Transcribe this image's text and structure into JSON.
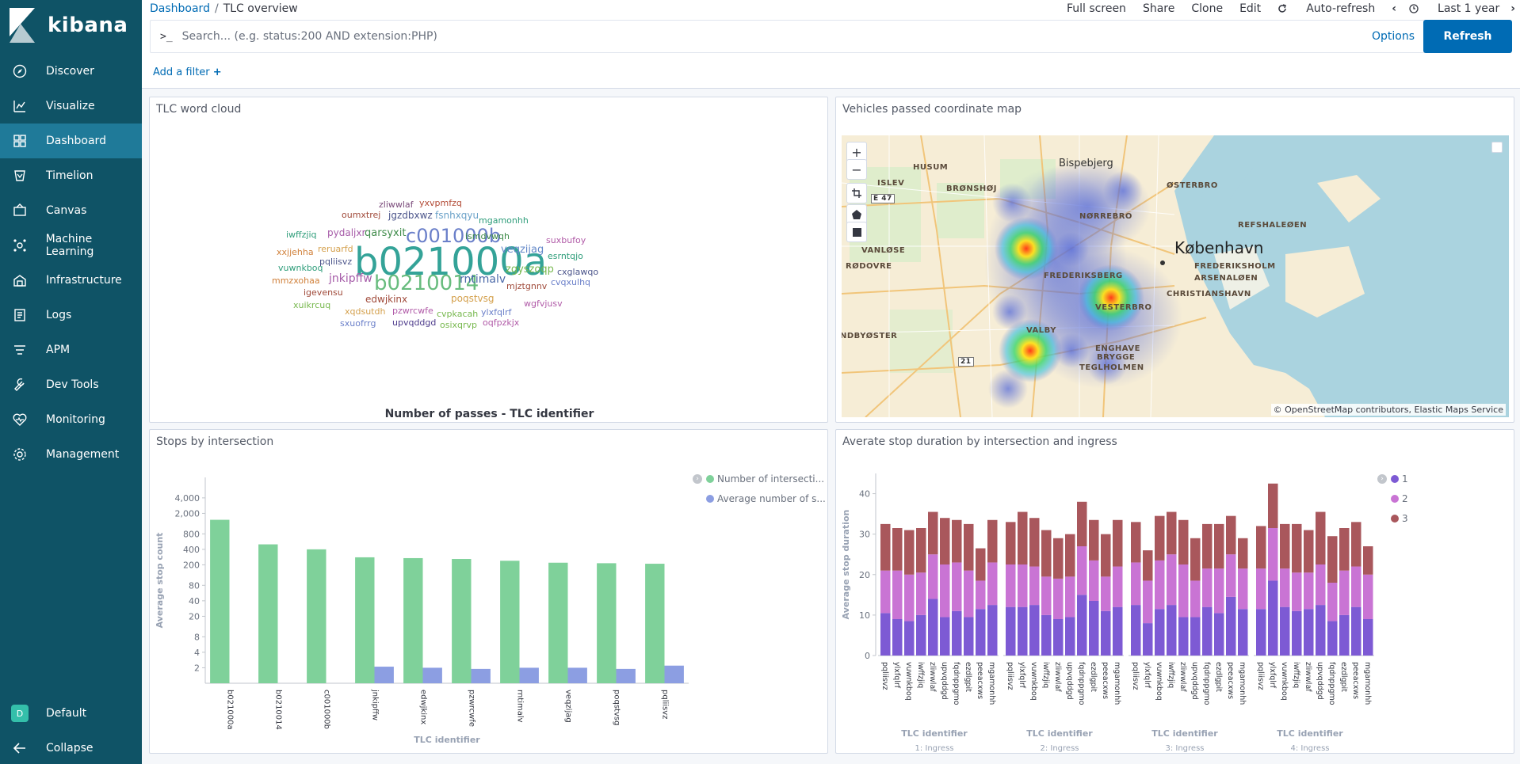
{
  "sidebar": {
    "brand": "kibana",
    "items": [
      {
        "label": "Discover",
        "icon": "compass-icon"
      },
      {
        "label": "Visualize",
        "icon": "visualize-icon"
      },
      {
        "label": "Dashboard",
        "icon": "dashboard-icon"
      },
      {
        "label": "Timelion",
        "icon": "timelion-icon"
      },
      {
        "label": "Canvas",
        "icon": "canvas-icon"
      },
      {
        "label": "Machine Learning",
        "icon": "ml-icon"
      },
      {
        "label": "Infrastructure",
        "icon": "infrastructure-icon"
      },
      {
        "label": "Logs",
        "icon": "logs-icon"
      },
      {
        "label": "APM",
        "icon": "apm-icon"
      },
      {
        "label": "Dev Tools",
        "icon": "wrench-icon"
      },
      {
        "label": "Monitoring",
        "icon": "heartbeat-icon"
      },
      {
        "label": "Management",
        "icon": "gear-icon"
      }
    ],
    "space_initial": "D",
    "space_label": "Default",
    "collapse_label": "Collapse"
  },
  "header": {
    "breadcrumb_root": "Dashboard",
    "breadcrumb_sep": "/",
    "breadcrumb_current": "TLC overview",
    "actions": [
      "Full screen",
      "Share",
      "Clone",
      "Edit"
    ],
    "auto_refresh": "Auto-refresh",
    "time_range": "Last 1 year",
    "search_prompt": ">_",
    "search_placeholder": "Search... (e.g. status:200 AND extension:PHP)",
    "options_label": "Options",
    "refresh_label": "Refresh",
    "add_filter_label": "Add a filter"
  },
  "panels": {
    "wordcloud": {
      "title": "TLC word cloud",
      "xlabel": "Number of passes - TLC identifier",
      "words": [
        {
          "text": "b021000a",
          "color": "#34a398"
        },
        {
          "text": "c001000b",
          "color": "#6a7fc9"
        },
        {
          "text": "b0210014",
          "color": "#68bc7e"
        },
        {
          "text": "rntimalv",
          "color": "#4c6aa9"
        },
        {
          "text": "jnkipffw",
          "color": "#a55ba8"
        },
        {
          "text": "qarsyxit",
          "color": "#3e8b49"
        },
        {
          "text": "veqzijag",
          "color": "#6388c8"
        },
        {
          "text": "zgyszoqp",
          "color": "#77b84e"
        },
        {
          "text": "pydaljxr",
          "color": "#a65ba8"
        },
        {
          "text": "jgzdbxwz",
          "color": "#4c558b"
        },
        {
          "text": "fsnhxqyu",
          "color": "#6aa1c8"
        },
        {
          "text": "oumxtrej",
          "color": "#a04a3a"
        },
        {
          "text": "zliwwlaf",
          "color": "#7a4a7a"
        },
        {
          "text": "yxvpmfzq",
          "color": "#b24a35"
        },
        {
          "text": "mgamonhh",
          "color": "#2e9d7a"
        },
        {
          "text": "ismdvwqh",
          "color": "#3e8b49"
        },
        {
          "text": "iwffzjiq",
          "color": "#2e9d7a"
        },
        {
          "text": "xxjjehha",
          "color": "#d0803a"
        },
        {
          "text": "reruarfd",
          "color": "#d4a04c"
        },
        {
          "text": "pqliisvz",
          "color": "#4c558b"
        },
        {
          "text": "suxbufoy",
          "color": "#b15ba8"
        },
        {
          "text": "esrntqjo",
          "color": "#2e9d7a"
        },
        {
          "text": "cxglawqo",
          "color": "#4c558b"
        },
        {
          "text": "cvqxulhq",
          "color": "#6a7fc9"
        },
        {
          "text": "vuwnkboq",
          "color": "#2e9d7a"
        },
        {
          "text": "mmzxohaa",
          "color": "#d0803a"
        },
        {
          "text": "igevensu",
          "color": "#a04a3a"
        },
        {
          "text": "edwjkinx",
          "color": "#a04a3a"
        },
        {
          "text": "poqstvsg",
          "color": "#d4a04c"
        },
        {
          "text": "mjztgnnv",
          "color": "#a04a3a"
        },
        {
          "text": "wgfvjusv",
          "color": "#b15ba8"
        },
        {
          "text": "xuikrcuq",
          "color": "#77b84e"
        },
        {
          "text": "xqdsutdh",
          "color": "#d4a04c"
        },
        {
          "text": "pzwrcwfe",
          "color": "#b15ba8"
        },
        {
          "text": "cvpkacah",
          "color": "#77b84e"
        },
        {
          "text": "ylxfqlrf",
          "color": "#6a7fc9"
        },
        {
          "text": "sxuofrrg",
          "color": "#6a7fc9"
        },
        {
          "text": "upvqddgd",
          "color": "#4c3a8b"
        },
        {
          "text": "osixqrvp",
          "color": "#77b84e"
        },
        {
          "text": "oqfpzkjx",
          "color": "#b15ba8"
        }
      ]
    },
    "map": {
      "title": "Vehicles passed coordinate map",
      "zoom_in": "+",
      "zoom_out": "−",
      "attribution": "© OpenStreetMap contributors, Elastic Maps Service",
      "places": [
        {
          "text": "Bispebjerg",
          "size": "city"
        },
        {
          "text": "HUSUM",
          "size": "district"
        },
        {
          "text": "ISLEV",
          "size": "district"
        },
        {
          "text": "BRØNSHØJ",
          "size": "district"
        },
        {
          "text": "NØRREBRO",
          "size": "district"
        },
        {
          "text": "ØSTERBRO",
          "size": "district"
        },
        {
          "text": "REFSHALEØEN",
          "size": "district"
        },
        {
          "text": "VANLØSE",
          "size": "district"
        },
        {
          "text": "København",
          "size": "capital"
        },
        {
          "text": "RØDOVRE",
          "size": "district"
        },
        {
          "text": "FREDERIKSBERG",
          "size": "district"
        },
        {
          "text": "FREDERIKSHOLM",
          "size": "district"
        },
        {
          "text": "ARSENALØEN",
          "size": "district"
        },
        {
          "text": "CHRISTIANSHAVN",
          "size": "district"
        },
        {
          "text": "VESTERBRO",
          "size": "district"
        },
        {
          "text": "VALBY",
          "size": "district"
        },
        {
          "text": "NDBYØSTER",
          "size": "district"
        },
        {
          "text": "ENGHAVE",
          "size": "district"
        },
        {
          "text": "BRYGGE",
          "size": "district"
        },
        {
          "text": "TEGLHOLMEN",
          "size": "district"
        },
        {
          "text": "E 47",
          "size": "road"
        },
        {
          "text": "21",
          "size": "road"
        }
      ]
    },
    "stops": {
      "title": "Stops by intersection",
      "legend": [
        "Number of intersecti...",
        "Average number of s..."
      ]
    },
    "duration": {
      "title": "Averate stop duration by intersection and ingress",
      "legend": [
        "1",
        "2",
        "3"
      ]
    }
  },
  "chart_data": [
    {
      "type": "bar",
      "title": "Stops by intersection",
      "xlabel": "TLC identifier",
      "ylabel": "Average stop count",
      "scale": "log",
      "yticks": [
        2,
        4,
        8,
        20,
        40,
        80,
        200,
        400,
        800,
        2000,
        4000
      ],
      "ytick_labels": [
        "2",
        "4",
        "8",
        "20",
        "40",
        "80",
        "200",
        "400",
        "800",
        "2,000",
        "4,000"
      ],
      "ylim": [
        1,
        10000
      ],
      "categories": [
        "b021000a",
        "b0210014",
        "c001000b",
        "jnkipffw",
        "edwjkinx",
        "pzwrcwfe",
        "rntimalv",
        "veqzijag",
        "poqstvsg",
        "pqliisvz"
      ],
      "series": [
        {
          "name": "Number of intersecti...",
          "color": "#7fd19a",
          "values": [
            1500,
            500,
            400,
            280,
            270,
            260,
            240,
            220,
            215,
            210
          ]
        },
        {
          "name": "Average number of s...",
          "color": "#8c9ee2",
          "values": [
            null,
            null,
            null,
            2.1,
            2.0,
            1.9,
            2.0,
            2.0,
            1.9,
            2.2
          ]
        }
      ],
      "legend_position": "top-right"
    },
    {
      "type": "bar",
      "stacked": true,
      "title": "Averate stop duration by intersection and ingress",
      "xlabel": "TLC identifier",
      "ylabel": "Average stop duration",
      "ylim": [
        0,
        45
      ],
      "yticks": [
        0,
        10,
        20,
        30,
        40
      ],
      "legend_position": "top-right",
      "groups": [
        {
          "label": "1: Ingress",
          "categories": [
            "pqliisvz",
            "ylxfqlrf",
            "vuwnkboq",
            "iwffzjiq",
            "zliwwlaf",
            "upvqddgd",
            "fqdnppgmo",
            "ezdlgpit",
            "peeacxws",
            "mgamonhh"
          ],
          "series": [
            {
              "name": "1",
              "values": [
                10.5,
                9.0,
                8.5,
                10.0,
                14.0,
                9.5,
                11.0,
                9.5,
                11.5,
                12.5
              ]
            },
            {
              "name": "2",
              "values": [
                10.5,
                12.0,
                11.5,
                10.5,
                11.0,
                13.0,
                12.0,
                11.5,
                7.0,
                10.5
              ]
            },
            {
              "name": "3",
              "values": [
                11.5,
                10.5,
                11.0,
                11.0,
                10.5,
                11.5,
                10.5,
                11.5,
                8.0,
                10.5
              ]
            }
          ]
        },
        {
          "label": "2: Ingress",
          "categories": [
            "pqliisvz",
            "ylxfqlrf",
            "vuwnkboq",
            "iwffzjiq",
            "zliwwlaf",
            "upvqddgd",
            "fqdnppgmo",
            "ezdlgpit",
            "peeacxws",
            "mgamonhh"
          ],
          "series": [
            {
              "name": "1",
              "values": [
                12.0,
                12.0,
                12.5,
                10.0,
                9.0,
                9.5,
                15.0,
                13.5,
                11.0,
                12.0
              ]
            },
            {
              "name": "2",
              "values": [
                10.5,
                10.5,
                9.5,
                9.5,
                10.0,
                10.0,
                12.0,
                10.0,
                8.5,
                10.0
              ]
            },
            {
              "name": "3",
              "values": [
                10.5,
                13.0,
                12.0,
                11.5,
                10.0,
                10.5,
                11.0,
                10.0,
                10.5,
                11.5
              ]
            }
          ]
        },
        {
          "label": "3: Ingress",
          "categories": [
            "pqliisvz",
            "ylxfqlrf",
            "vuwnkboq",
            "iwffzjiq",
            "zliwwlaf",
            "upvqddgd",
            "fqdnppgmo",
            "ezdlgpit",
            "peeacxws",
            "mgamonhh"
          ],
          "series": [
            {
              "name": "1",
              "values": [
                12.5,
                8.0,
                11.5,
                12.5,
                9.5,
                9.5,
                12.0,
                10.5,
                14.5,
                11.5
              ]
            },
            {
              "name": "2",
              "values": [
                10.5,
                10.5,
                12.0,
                12.5,
                13.0,
                9.0,
                9.5,
                11.0,
                10.5,
                10.0
              ]
            },
            {
              "name": "3",
              "values": [
                10.0,
                7.5,
                11.0,
                10.5,
                11.0,
                10.5,
                11.0,
                11.0,
                9.5,
                7.5
              ]
            }
          ]
        },
        {
          "label": "4: Ingress",
          "categories": [
            "pqliisvz",
            "ylxfqlrf",
            "vuwnkboq",
            "iwffzjiq",
            "zliwwlaf",
            "upvqddgd",
            "fqdnppgmo",
            "ezdlgpit",
            "peeacxws",
            "mgamonhh"
          ],
          "series": [
            {
              "name": "1",
              "values": [
                11.5,
                18.5,
                12.0,
                11.0,
                11.5,
                12.5,
                8.5,
                10.0,
                12.0,
                9.0
              ]
            },
            {
              "name": "2",
              "values": [
                10.0,
                13.0,
                9.5,
                9.5,
                9.0,
                10.0,
                9.5,
                11.0,
                10.0,
                11.0
              ]
            },
            {
              "name": "3",
              "values": [
                10.5,
                11.0,
                11.0,
                12.0,
                10.5,
                13.0,
                11.5,
                10.5,
                11.0,
                7.0
              ]
            }
          ]
        }
      ],
      "series_colors": [
        "#7d5ad4",
        "#c974d4",
        "#a9575c"
      ]
    }
  ]
}
